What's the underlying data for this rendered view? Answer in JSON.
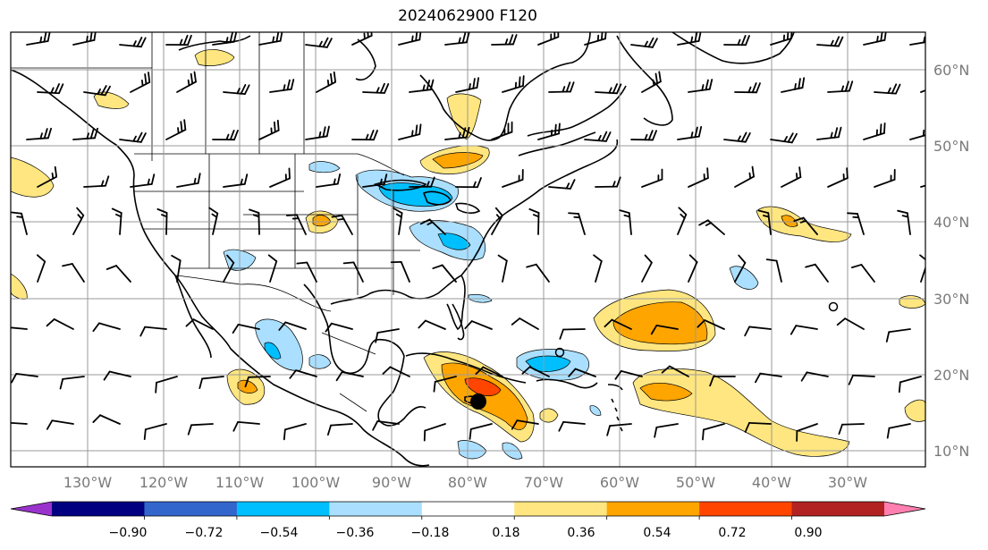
{
  "title": "2024062900 F120",
  "map": {
    "lat_labels": [
      "60°N",
      "50°N",
      "40°N",
      "30°N",
      "20°N",
      "10°N"
    ],
    "lon_labels": [
      "130°W",
      "120°W",
      "110°W",
      "100°W",
      "90°W",
      "80°W",
      "70°W",
      "60°W",
      "50°W",
      "40°W",
      "30°W"
    ],
    "lat_values": [
      60,
      50,
      40,
      30,
      20,
      10
    ],
    "lon_values": [
      -130,
      -120,
      -110,
      -100,
      -90,
      -80,
      -70,
      -60,
      -50,
      -40,
      -30
    ],
    "extent": {
      "lon_min": -141,
      "lon_max": -20,
      "lat_min": 7.5,
      "lat_max": 64.5
    }
  },
  "colorbar": {
    "labels": [
      "−0.90",
      "−0.72",
      "−0.54",
      "−0.36",
      "−0.18",
      "0.18",
      "0.36",
      "0.54",
      "0.72",
      "0.90"
    ],
    "levels": [
      -0.9,
      -0.72,
      -0.54,
      -0.36,
      -0.18,
      0.18,
      0.36,
      0.54,
      0.72,
      0.9
    ],
    "colors": [
      "#9933cc",
      "#000080",
      "#3366cc",
      "#00bfff",
      "#aadfff",
      "#ffffff",
      "#ffe680",
      "#ffa500",
      "#ff4500",
      "#b22222",
      "#ff80b0"
    ]
  },
  "markers": {
    "storm_center": {
      "lon": -78.5,
      "lat": 16.5
    },
    "open_circles": [
      {
        "lon": -67.5,
        "lat": 23.0
      },
      {
        "lon": -31.0,
        "lat": 29.0
      }
    ]
  }
}
